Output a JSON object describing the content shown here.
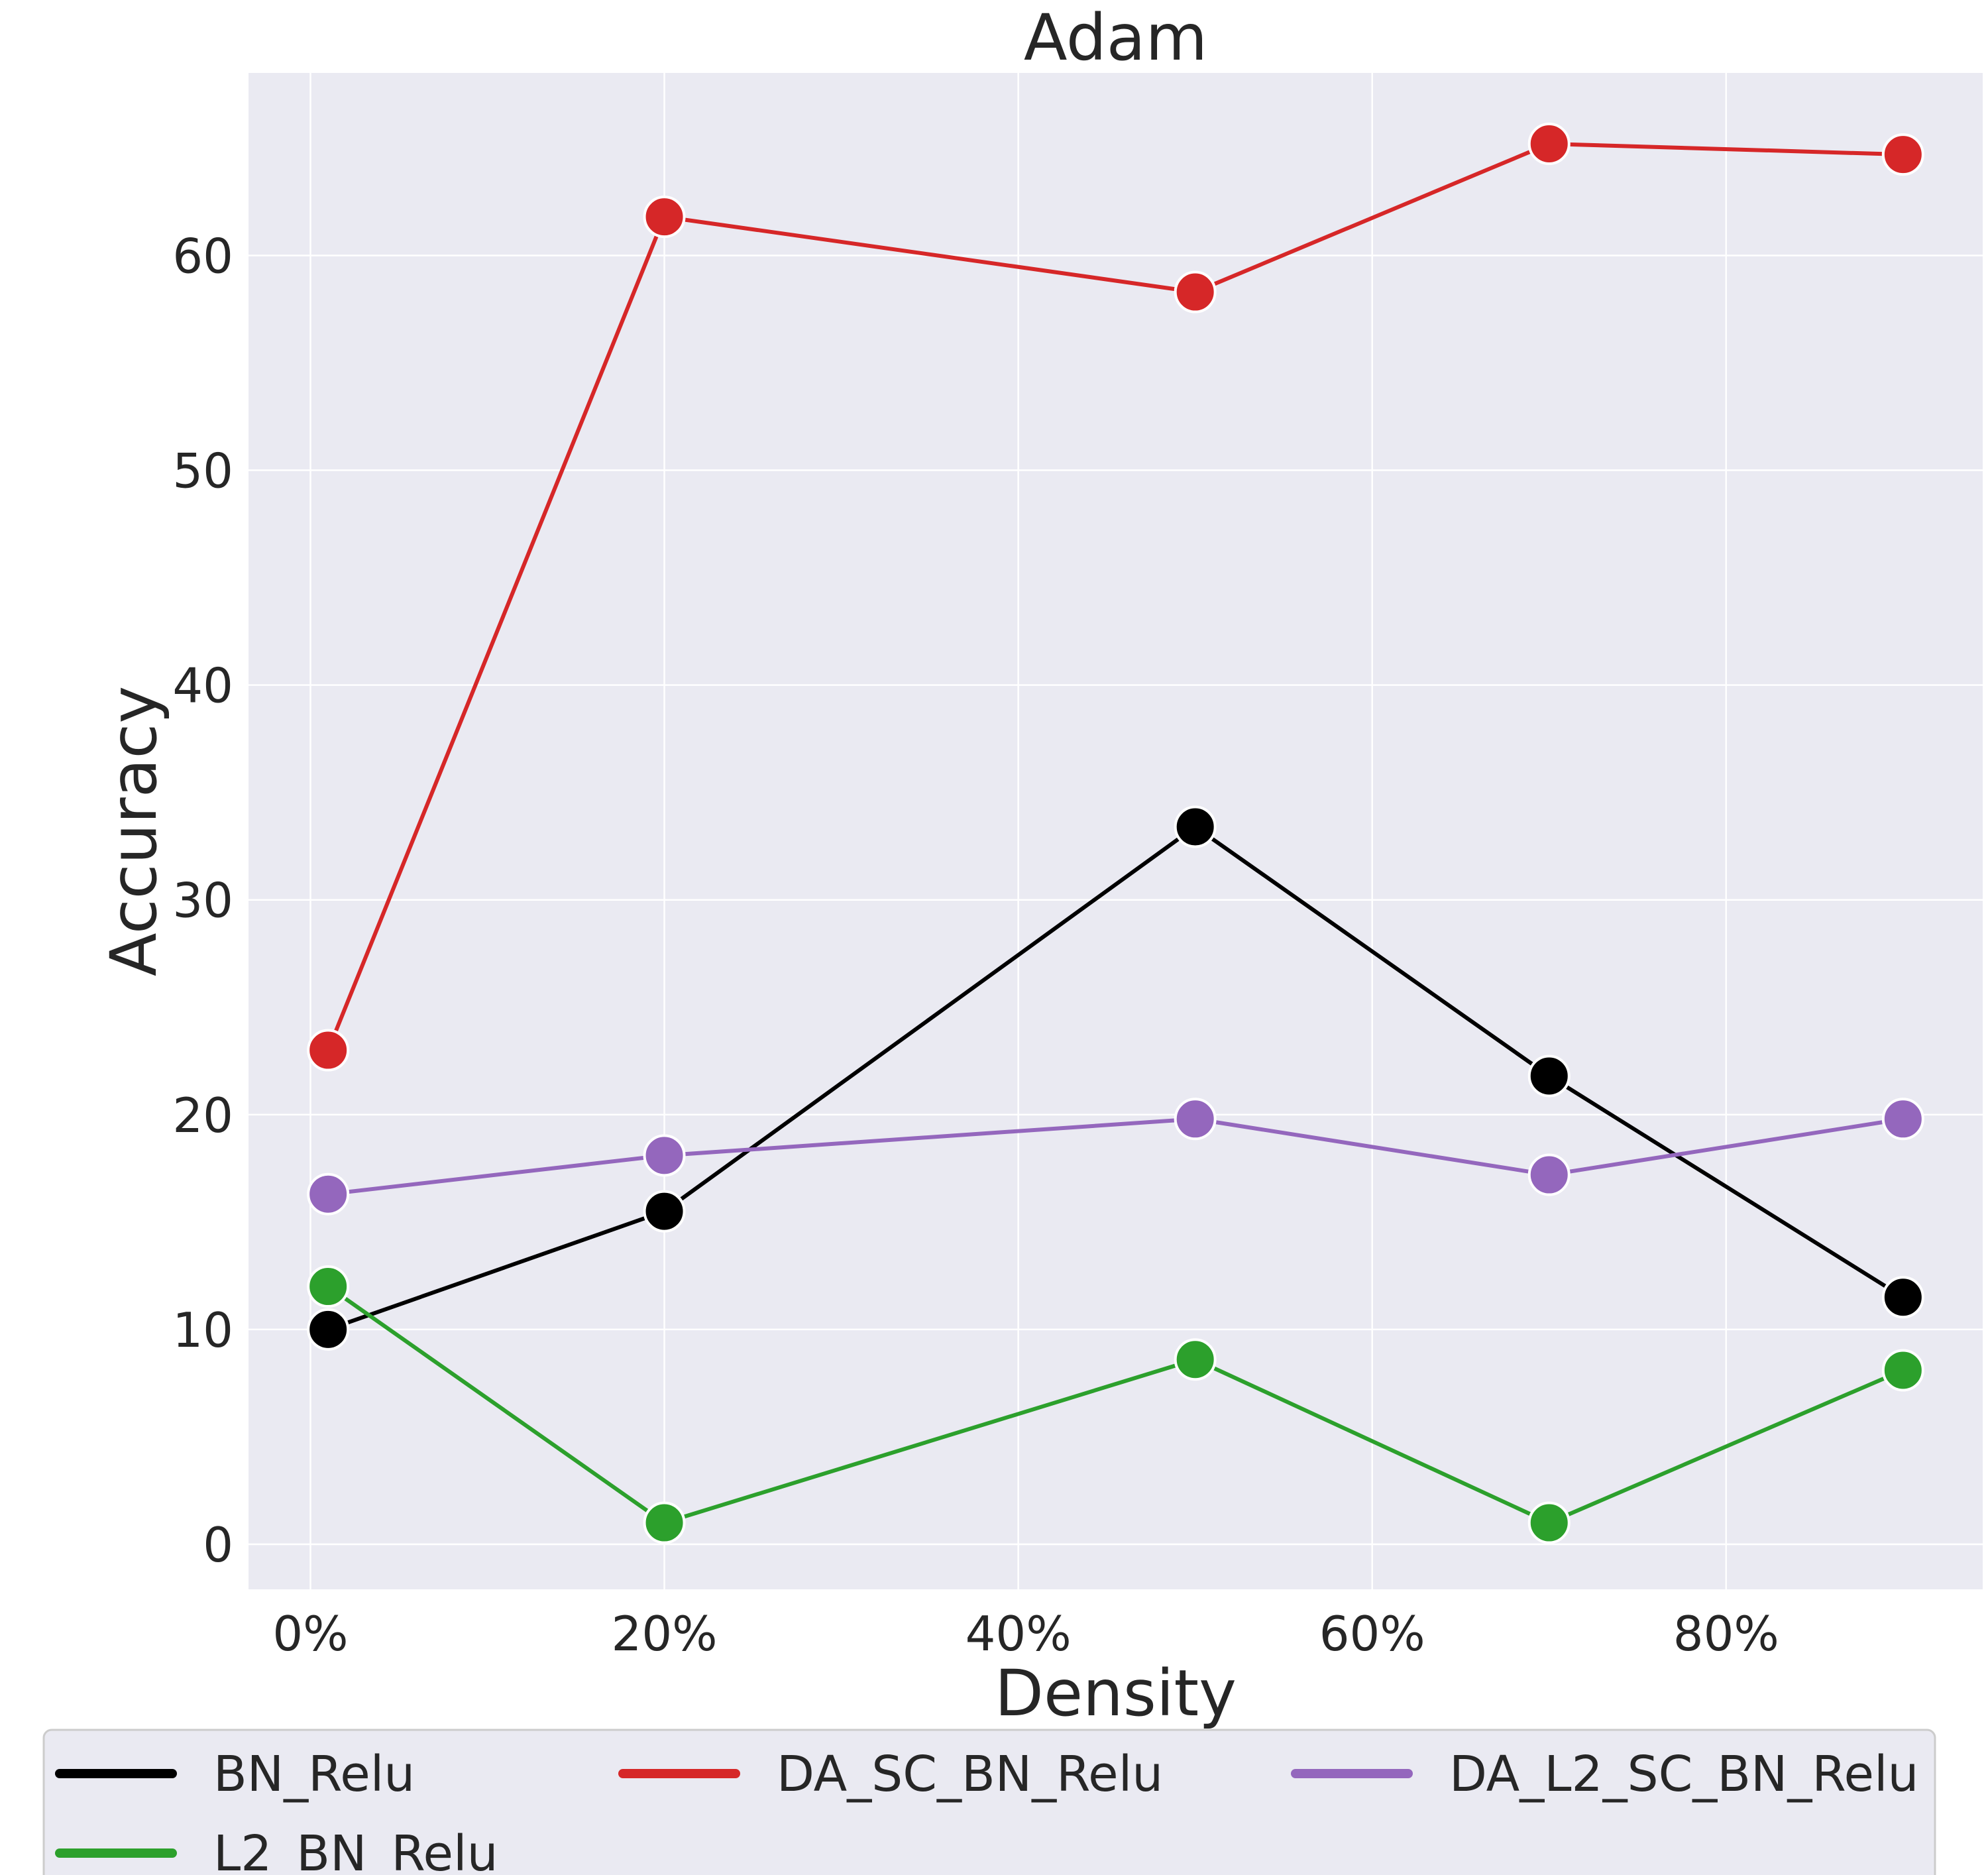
{
  "chart_data": {
    "type": "line",
    "title": "Adam",
    "xlabel": "Density",
    "ylabel": "Accuracy",
    "x": [
      1,
      20,
      50,
      70,
      90
    ],
    "xlim": [
      -3.5,
      94.5
    ],
    "ylim": [
      -2.1,
      68.5
    ],
    "xticks": [
      0,
      20,
      40,
      60,
      80
    ],
    "xtick_labels": [
      "0%",
      "20%",
      "40%",
      "60%",
      "80%"
    ],
    "yticks": [
      0,
      10,
      20,
      30,
      40,
      50,
      60
    ],
    "ytick_labels": [
      "0",
      "10",
      "20",
      "30",
      "40",
      "50",
      "60"
    ],
    "grid": true,
    "legend_position": "bottom",
    "series": [
      {
        "name": "BN_Relu",
        "color": "#000000",
        "values": [
          10.0,
          15.5,
          33.4,
          21.8,
          11.5
        ]
      },
      {
        "name": "DA_SC_BN_Relu",
        "color": "#d62728",
        "values": [
          23.0,
          61.8,
          58.3,
          65.2,
          64.7
        ]
      },
      {
        "name": "DA_L2_SC_BN_Relu",
        "color": "#9467bd",
        "values": [
          16.3,
          18.1,
          19.8,
          17.2,
          19.8
        ]
      },
      {
        "name": "L2_BN_Relu",
        "color": "#2ca02c",
        "values": [
          12.0,
          1.0,
          8.6,
          1.0,
          8.1
        ]
      }
    ]
  }
}
